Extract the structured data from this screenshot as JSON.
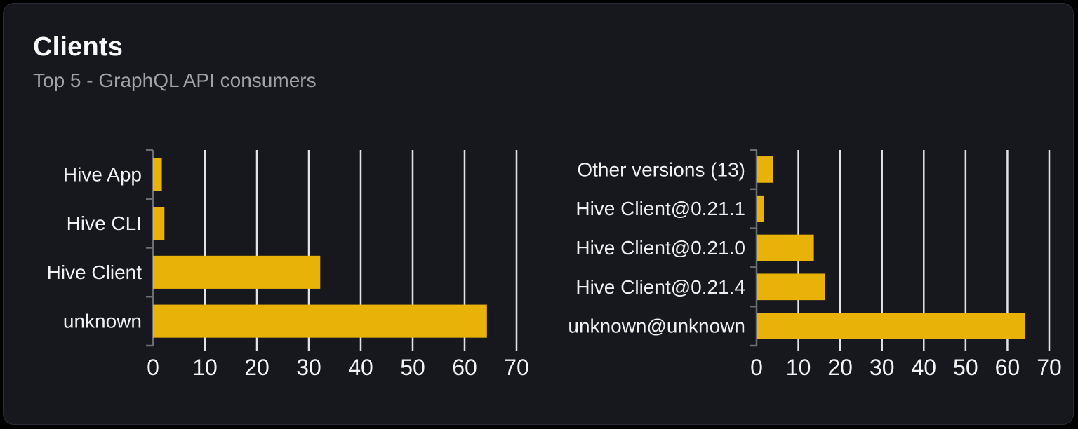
{
  "card": {
    "title": "Clients",
    "subtitle": "Top 5 - GraphQL API consumers"
  },
  "colors": {
    "page_bg": "#000000",
    "card_bg": "#16181d",
    "card_border": "#2a2d35",
    "bar": "#e9b208",
    "gridline": "#e0e3ec",
    "axis": "#6b6d74",
    "category_label": "#f0f1f3",
    "tick_label": "#f2f3f5",
    "title": "#fafafa",
    "subtitle": "#a0a2aa"
  },
  "chart_data": [
    {
      "name": "clients-by-name",
      "type": "bar",
      "orientation": "horizontal",
      "categories": [
        "Hive App",
        "Hive CLI",
        "Hive Client",
        "unknown"
      ],
      "values": [
        1.7,
        2.2,
        32.2,
        64.3
      ],
      "xlim": [
        0,
        70
      ],
      "xticks": [
        0,
        10,
        20,
        30,
        40,
        50,
        60,
        70
      ],
      "grid": true,
      "legend": "none",
      "xlabel": "",
      "ylabel": ""
    },
    {
      "name": "clients-by-version",
      "type": "bar",
      "orientation": "horizontal",
      "categories": [
        "Other versions (13)",
        "Hive Client@0.21.1",
        "Hive Client@0.21.0",
        "Hive Client@0.21.4",
        "unknown@unknown"
      ],
      "values": [
        3.9,
        1.8,
        13.7,
        16.4,
        64.3
      ],
      "xlim": [
        0,
        70
      ],
      "xticks": [
        0,
        10,
        20,
        30,
        40,
        50,
        60,
        70
      ],
      "grid": true,
      "legend": "none",
      "xlabel": "",
      "ylabel": ""
    }
  ]
}
